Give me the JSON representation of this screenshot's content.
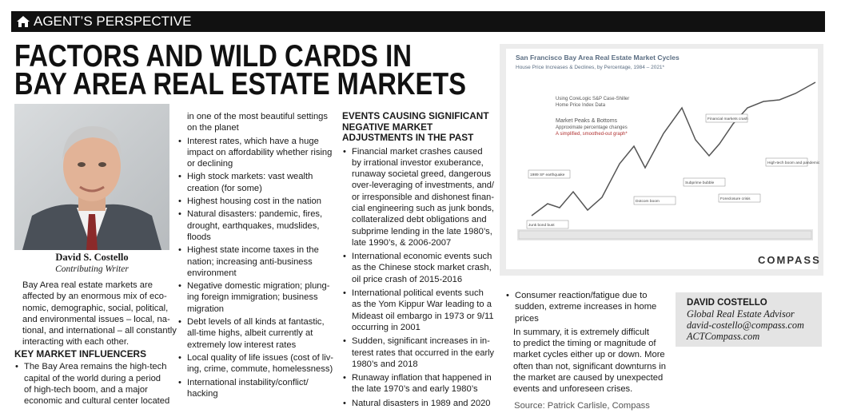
{
  "banner": {
    "label": "AGENT’S PERSPECTIVE"
  },
  "headline": {
    "lines": [
      "FACTORS AND WILD CARDS IN",
      "BAY AREA REAL ESTATE MARKETS"
    ]
  },
  "photo_caption": {
    "name": "David S. Costello",
    "role": "Contributing Writer"
  },
  "intro": [
    "Bay Area real estate markets are",
    "affected by an enormous mix of eco-",
    "nomic, demographic, social, political,",
    "and environmental issues – local, na-",
    "tional, and international – all constantly",
    "interacting with each other."
  ],
  "key_market_influencers": {
    "heading": "KEY MARKET INFLUENCERS",
    "items": [
      [
        "The Bay Area remains the high-tech",
        "capital of the world during a period",
        "of high-tech boom, and a major",
        "economic and cultural center located",
        "in one of the most beautiful settings",
        "on the planet"
      ],
      [
        "Interest rates, which have a huge",
        "impact on affordability whether rising",
        "or declining"
      ],
      [
        "High stock markets: vast wealth",
        "creation (for some)"
      ],
      [
        "Highest housing cost in the nation"
      ],
      [
        "Natural disasters: pandemic, fires,",
        "drought, earthquakes, mudslides,",
        "floods"
      ],
      [
        "Highest state income taxes in the",
        "nation; increasing anti-business",
        "environment"
      ],
      [
        "Negative domestic migration; plung-",
        "ing foreign immigration; business",
        "migration"
      ],
      [
        "Debt levels of all kinds at fantastic,",
        "all-time highs, albeit currently at",
        "extremely low interest rates"
      ],
      [
        "Local quality of life issues (cost of liv-",
        "ing, crime, commute, homelessness)"
      ],
      [
        "International instability/conflict/",
        "hacking"
      ]
    ]
  },
  "events": {
    "heading": [
      "EVENTS CAUSING SIGNIFICANT",
      "NEGATIVE MARKET",
      "ADJUSTMENTS IN THE PAST"
    ],
    "items": [
      [
        "Financial market crashes caused",
        "by irrational investor exuberance,",
        "runaway societal greed, dangerous",
        "over-leveraging of investments, and/",
        "or irresponsible and dishonest finan-",
        "cial engineering such as junk bonds,",
        "collateralized debt obligations and",
        "subprime lending in the late 1980’s,",
        "late 1990’s, & 2006-2007"
      ],
      [
        "International economic events such",
        "as the Chinese stock market crash,",
        "oil price crash of 2015-2016"
      ],
      [
        "International political events such",
        "as the Yom Kippur War leading to a",
        "Mideast oil embargo in 1973 or 9/11",
        "occurring in 2001"
      ],
      [
        "Sudden, significant increases in in-",
        "terest rates that occurred in the early",
        "1980’s and 2018"
      ],
      [
        "Runaway inflation that happened in",
        "the late 1970’s and early 1980’s"
      ],
      [
        "Natural disasters in 1989 and 2020"
      ],
      [
        "Consumer reaction/fatigue due to",
        "sudden, extreme increases in home",
        "prices"
      ]
    ]
  },
  "conclusion": {
    "paragraph": [
      "In summary, it is extremely difficult",
      "to predict the timing or magnitude of",
      "market cycles either up or down. More",
      "often than not, significant downturns in",
      "the market are caused by unexpected",
      "events and unforeseen crises."
    ],
    "source": "Source: Patrick Carlisle, Compass"
  },
  "chart_image": {
    "title": "San Francisco Bay Area Real Estate Market Cycles",
    "subtitle": "House Price Increases & Declines, by Percentage, 1984 – 2021*",
    "notes": [
      "Using CoreLogic S&P Case-Shiller",
      "Home Price Index Data",
      "Market Peaks & Bottoms",
      "Approximate percentage changes",
      "A simplified, smoothed-out graph*"
    ],
    "annotations": [
      "1989 SF earthquake",
      "Junk bond bust",
      "Dotcom boom",
      "Subprime bubble",
      "Foreclosure crisis",
      "Financial markets crash",
      "High-tech boom and pandemic"
    ],
    "logo": "COMPASS"
  },
  "author_box": {
    "name": "DAVID COSTELLO",
    "title": "Global Real Estate Advisor",
    "email": "david-costello@compass.com",
    "website": "ACTCompass.com"
  }
}
